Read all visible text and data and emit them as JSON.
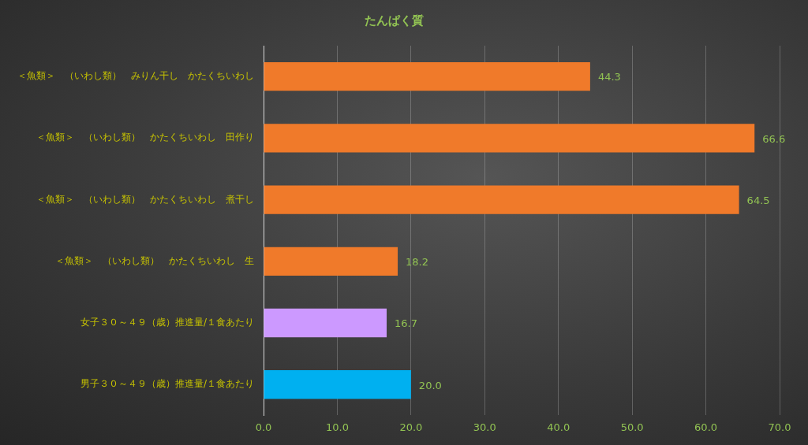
{
  "chart_data": {
    "type": "bar",
    "orientation": "horizontal",
    "title": "たんぱく質",
    "categories": [
      "＜魚類＞　（いわし類）　みりん干し　かたくちいわし",
      "＜魚類＞　（いわし類）　かたくちいわし　田作り",
      "＜魚類＞　（いわし類）　かたくちいわし　煮干し",
      "＜魚類＞　（いわし類）　かたくちいわし　生",
      "女子３０～４９（歳）推進量/１食あたり",
      "男子３０～４９（歳）推進量/１食あたり"
    ],
    "values": [
      44.3,
      66.6,
      64.5,
      18.2,
      16.7,
      20.0
    ],
    "value_labels": [
      "44.3",
      "66.6",
      "64.5",
      "18.2",
      "16.7",
      "20.0"
    ],
    "colors": [
      "#f07a2a",
      "#f07a2a",
      "#f07a2a",
      "#f07a2a",
      "#cc99ff",
      "#00b0f0"
    ],
    "xlim": [
      0,
      70
    ],
    "xticks": [
      {
        "value": 0,
        "label": "0.0"
      },
      {
        "value": 10,
        "label": "10.0"
      },
      {
        "value": 20,
        "label": "20.0"
      },
      {
        "value": 30,
        "label": "30.0"
      },
      {
        "value": 40,
        "label": "40.0"
      },
      {
        "value": 50,
        "label": "50.0"
      },
      {
        "value": 60,
        "label": "60.0"
      },
      {
        "value": 70,
        "label": "70.0"
      }
    ],
    "grid": "x",
    "legend": false
  }
}
